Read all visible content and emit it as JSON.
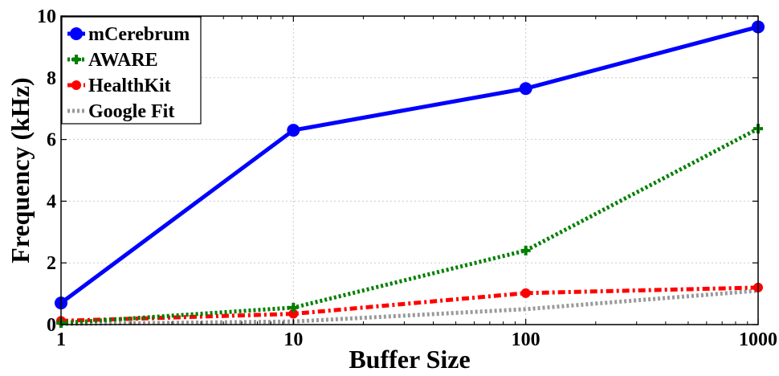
{
  "chart_data": {
    "type": "line",
    "title": "",
    "xlabel": "Buffer Size",
    "ylabel": "Frequency (kHz)",
    "x_scale": "log",
    "x": [
      1,
      10,
      100,
      1000
    ],
    "x_tick_labels": [
      "1",
      "10",
      "100",
      "1000"
    ],
    "xlim": [
      1,
      1000
    ],
    "ylim": [
      0,
      10
    ],
    "y_ticks": [
      0,
      2,
      4,
      6,
      8,
      10
    ],
    "y_tick_labels": [
      "0",
      "2",
      "4",
      "6",
      "8",
      "10"
    ],
    "grid": true,
    "legend_position": "top-left",
    "series": [
      {
        "name": "mCerebrum",
        "values": [
          0.7,
          6.3,
          7.65,
          9.65
        ],
        "color": "#0000ff",
        "style": "solid",
        "marker": "circle"
      },
      {
        "name": "AWARE",
        "values": [
          0.05,
          0.55,
          2.4,
          6.35
        ],
        "color": "#007f00",
        "style": "dotted",
        "marker": "plus"
      },
      {
        "name": "HealthKit",
        "values": [
          0.12,
          0.35,
          1.02,
          1.2
        ],
        "color": "#ff0000",
        "style": "dashdot",
        "marker": "circle"
      },
      {
        "name": "Google Fit",
        "values": [
          0.02,
          0.1,
          0.5,
          1.1
        ],
        "color": "#999999",
        "style": "dotted",
        "marker": "none"
      }
    ]
  }
}
